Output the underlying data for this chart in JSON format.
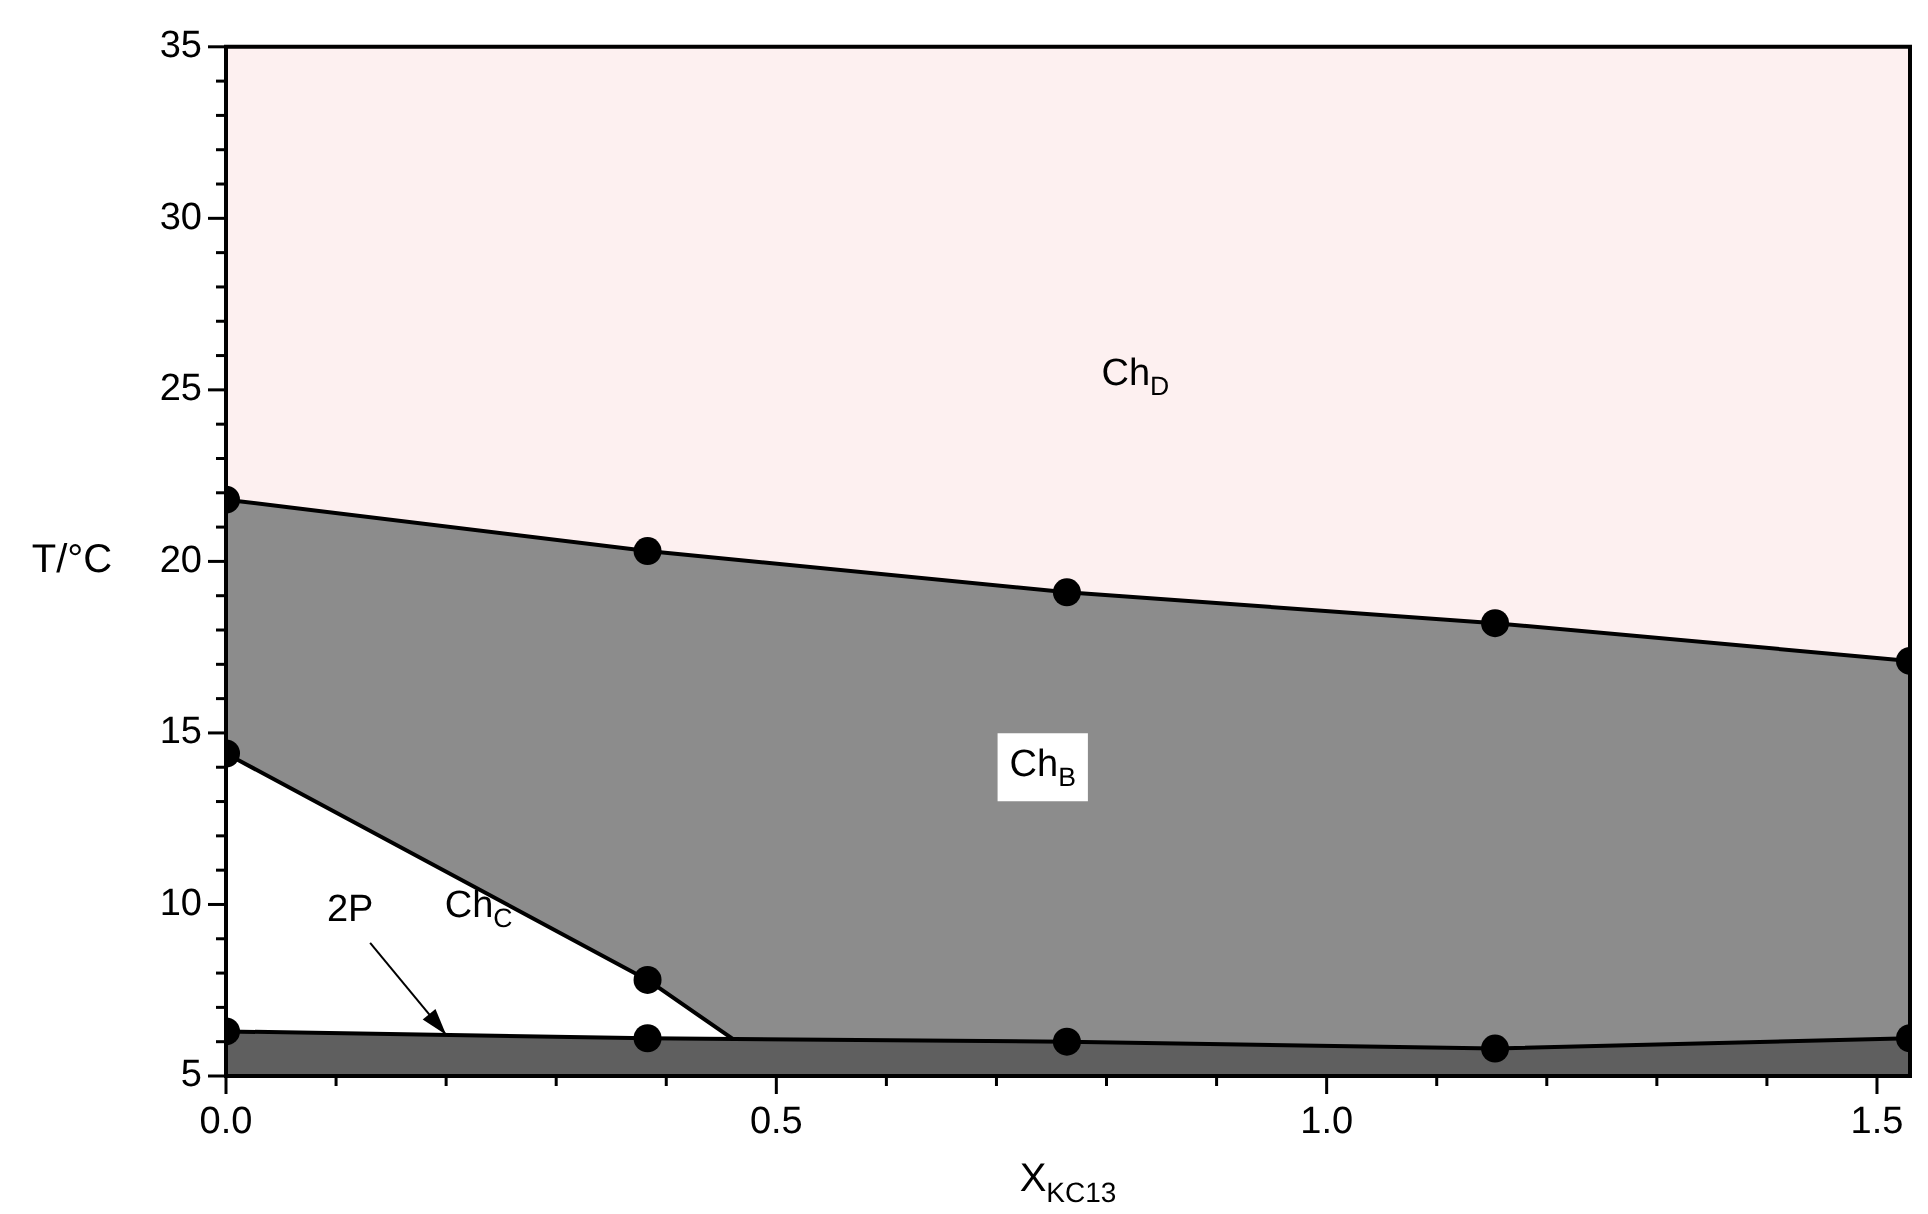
{
  "chart_data": {
    "type": "area",
    "xlabel": "X$_{KC13}$",
    "ylabel": "T/°C",
    "xlim": [
      0,
      1.53
    ],
    "ylim": [
      5,
      35
    ],
    "xticks": [
      {
        "value": 0,
        "label": "0.0"
      },
      {
        "value": 0.1,
        "label": null
      },
      {
        "value": 0.2,
        "label": null
      },
      {
        "value": 0.3,
        "label": null
      },
      {
        "value": 0.4,
        "label": null
      },
      {
        "value": 0.5,
        "label": "0.5"
      },
      {
        "value": 0.6,
        "label": null
      },
      {
        "value": 0.7,
        "label": null
      },
      {
        "value": 0.8,
        "label": null
      },
      {
        "value": 0.9,
        "label": null
      },
      {
        "value": 1,
        "label": "1.0"
      },
      {
        "value": 1.1,
        "label": null
      },
      {
        "value": 1.2,
        "label": null
      },
      {
        "value": 1.3,
        "label": null
      },
      {
        "value": 1.4,
        "label": null
      },
      {
        "value": 1.5,
        "label": "1.5"
      }
    ],
    "yticks": [
      5,
      {
        "value": 6,
        "label": null
      },
      {
        "value": 7,
        "label": null
      },
      {
        "value": 8,
        "label": null
      },
      {
        "value": 9,
        "label": null
      },
      10,
      {
        "value": 11,
        "label": null
      },
      {
        "value": 12,
        "label": null
      },
      {
        "value": 13,
        "label": null
      },
      {
        "value": 14,
        "label": null
      },
      15,
      {
        "value": 16,
        "label": null
      },
      {
        "value": 17,
        "label": null
      },
      {
        "value": 18,
        "label": null
      },
      {
        "value": 19,
        "label": null
      },
      20,
      {
        "value": 21,
        "label": null
      },
      {
        "value": 22,
        "label": null
      },
      {
        "value": 23,
        "label": null
      },
      {
        "value": 24,
        "label": null
      },
      25,
      {
        "value": 26,
        "label": null
      },
      {
        "value": 27,
        "label": null
      },
      {
        "value": 28,
        "label": null
      },
      {
        "value": 29,
        "label": null
      },
      30,
      {
        "value": 31,
        "label": null
      },
      {
        "value": 32,
        "label": null
      },
      {
        "value": 33,
        "label": null
      },
      {
        "value": 34,
        "label": null
      },
      35
    ],
    "legend": false,
    "series": [
      {
        "type": "scatter",
        "color": "#000000",
        "marker": "circle",
        "x": [
          0,
          0,
          0,
          0.383,
          0.383,
          0.383,
          0.764,
          0.764,
          1.153,
          1.153,
          1.53,
          1.53
        ],
        "values": [
          21.8,
          14.4,
          6.3,
          20.3,
          7.8,
          6.1,
          19.1,
          6.0,
          18.2,
          5.8,
          17.1,
          6.1
        ]
      },
      {
        "color": "#5f5f5f",
        "marker": "none",
        "x": [
          0,
          0.383,
          0.764,
          1.153,
          1.53
        ],
        "values": [
          6.3,
          6.1,
          6.0,
          5.8,
          6.1
        ]
      },
      {
        "color": "#ffffff",
        "marker": "none",
        "x": [
          0,
          0.383,
          0.464
        ],
        "values": [
          14.4,
          7.8,
          6.0
        ]
      },
      {
        "color": "#8c8c8c",
        "marker": "none",
        "x": [
          0,
          0.383,
          0.764,
          1.153,
          1.53
        ],
        "values": [
          21.8,
          20.3,
          19.1,
          18.2,
          17.1
        ]
      }
    ],
    "annotations": [
      "Ch$_{D}$",
      "Ch$_{B}$",
      "Ch$_{C}$",
      {
        "text": "2P",
        "x": 0.2,
        "y": 6.2
      }
    ]
  }
}
